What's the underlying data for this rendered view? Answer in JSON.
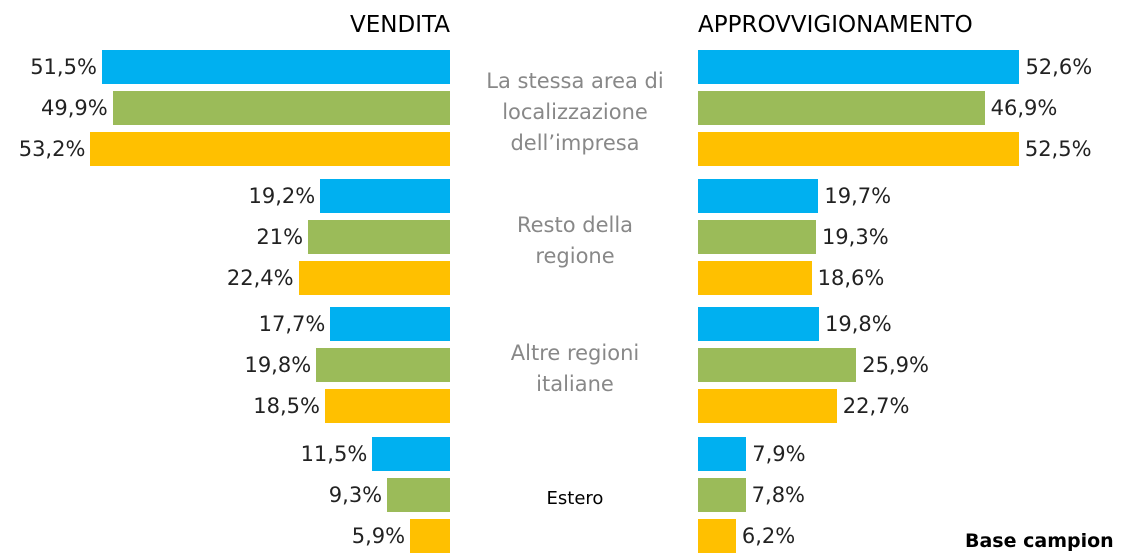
{
  "chart_data": {
    "type": "butterfly_bar",
    "categories": [
      "La stessa area di localizzazione dell’impresa",
      "Resto della regione",
      "Altre regioni italiane",
      "Estero"
    ],
    "panels": [
      {
        "title": "VENDITA",
        "xlim": [
          0,
          54
        ],
        "series": [
          {
            "color": "#00b0f0",
            "values": [
              51.5,
              19.2,
              17.7,
              11.5
            ],
            "value_labels": [
              "51,5%",
              "19,2%",
              "17,7%",
              "11,5%"
            ]
          },
          {
            "color": "#9bbb59",
            "values": [
              49.9,
              21,
              19.8,
              9.3
            ],
            "value_labels": [
              "49,9%",
              "21%",
              "19,8%",
              "9,3%"
            ]
          },
          {
            "color": "#ffc000",
            "values": [
              53.2,
              22.4,
              18.5,
              5.9
            ],
            "value_labels": [
              "53,2%",
              "22,4%",
              "18,5%",
              "5,9%"
            ]
          }
        ]
      },
      {
        "title": "APPROVVIGIONAMENTO",
        "xlim": [
          0,
          54
        ],
        "series": [
          {
            "color": "#00b0f0",
            "values": [
              52.6,
              19.7,
              19.8,
              7.9
            ],
            "value_labels": [
              "52,6%",
              "19,7%",
              "19,8%",
              "7,9%"
            ]
          },
          {
            "color": "#9bbb59",
            "values": [
              46.9,
              19.3,
              25.9,
              7.8
            ],
            "value_labels": [
              "46,9%",
              "19,3%",
              "25,9%",
              "7,8%"
            ]
          },
          {
            "color": "#ffc000",
            "values": [
              52.5,
              18.6,
              22.7,
              6.2
            ],
            "value_labels": [
              "52,5%",
              "18,6%",
              "22,7%",
              "6,2%"
            ]
          }
        ]
      }
    ],
    "annotation": "Base campion"
  }
}
